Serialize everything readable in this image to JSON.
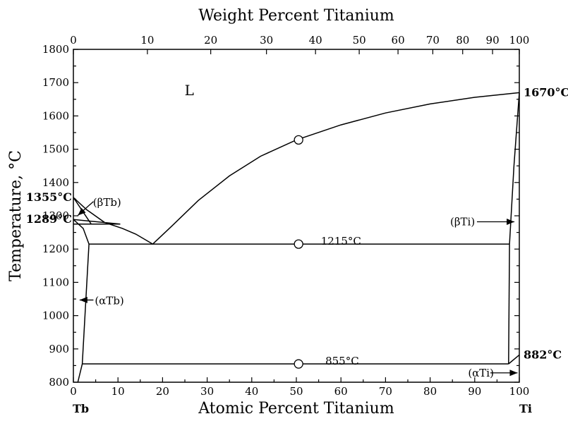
{
  "chart_data": {
    "type": "phase-diagram",
    "title": "Weight Percent Titanium",
    "xlabel": "Atomic Percent Titanium",
    "ylabel": "Temperature, °C",
    "xlim": [
      0,
      100
    ],
    "ylim": [
      800,
      1800
    ],
    "x_ticks": [
      0,
      10,
      20,
      30,
      40,
      50,
      60,
      70,
      80,
      90,
      100
    ],
    "y_ticks": [
      800,
      900,
      1000,
      1100,
      1200,
      1300,
      1400,
      1500,
      1600,
      1700,
      1800
    ],
    "top_ticks": [
      {
        "label": "0",
        "at": 0
      },
      {
        "label": "10",
        "at": 16.6
      },
      {
        "label": "20",
        "at": 30.8
      },
      {
        "label": "30",
        "at": 43.3
      },
      {
        "label": "40",
        "at": 54.3
      },
      {
        "label": "50",
        "at": 64.1
      },
      {
        "label": "60",
        "at": 72.8
      },
      {
        "label": "70",
        "at": 80.6
      },
      {
        "label": "80",
        "at": 87.3
      },
      {
        "label": "90",
        "at": 94.0
      },
      {
        "label": "100",
        "at": 100
      }
    ],
    "end_labels": {
      "left": "Tb",
      "right": "Ti"
    },
    "phase_label": {
      "text": "L",
      "x": 26,
      "y": 1662
    },
    "annotations": [
      {
        "text": "1355°C",
        "x": 0,
        "y": 1355,
        "bold": true,
        "side": "left"
      },
      {
        "text": "1289°C",
        "x": 0,
        "y": 1289,
        "bold": true,
        "side": "left"
      },
      {
        "text": "1670°C",
        "x": 100,
        "y": 1670,
        "bold": true,
        "side": "right"
      },
      {
        "text": "882°C",
        "x": 100,
        "y": 882,
        "bold": true,
        "side": "right"
      },
      {
        "text": "(βTb)",
        "x": 4.4,
        "y": 1340,
        "bold": false
      },
      {
        "text": "(αTb)",
        "x": 4.8,
        "y": 1045,
        "bold": false
      },
      {
        "text": "(βTi)",
        "x": 84.5,
        "y": 1282,
        "bold": false
      },
      {
        "text": "(αTi)",
        "x": 88.5,
        "y": 828,
        "bold": false
      },
      {
        "text": "1215°C",
        "x": 55.5,
        "y": 1224,
        "bold": false
      },
      {
        "text": "855°C",
        "x": 56.5,
        "y": 864,
        "bold": false
      }
    ],
    "curves": [
      {
        "name": "liquidus-left",
        "points": [
          [
            0,
            1355
          ],
          [
            3,
            1318
          ],
          [
            7,
            1280
          ],
          [
            11,
            1262
          ],
          [
            14,
            1245
          ],
          [
            17.8,
            1215
          ]
        ]
      },
      {
        "name": "liquidus-right",
        "points": [
          [
            17.8,
            1215
          ],
          [
            22,
            1268
          ],
          [
            28,
            1346
          ],
          [
            35,
            1420
          ],
          [
            42,
            1479
          ],
          [
            50,
            1528
          ],
          [
            60,
            1573
          ],
          [
            70,
            1609
          ],
          [
            80,
            1636
          ],
          [
            90,
            1656
          ],
          [
            100,
            1670
          ]
        ]
      },
      {
        "name": "betaTb-solidus",
        "points": [
          [
            0,
            1355
          ],
          [
            4,
            1275
          ]
        ]
      },
      {
        "name": "betaTb-solvus",
        "points": [
          [
            0,
            1289
          ],
          [
            2.2,
            1262
          ],
          [
            3.5,
            1215
          ]
        ]
      },
      {
        "name": "alphaTb-solvus",
        "points": [
          [
            3.5,
            1215
          ],
          [
            2,
            855
          ],
          [
            1,
            800
          ]
        ]
      },
      {
        "name": "peritectic-1275",
        "points": [
          [
            0,
            1275
          ],
          [
            10.5,
            1275
          ]
        ]
      },
      {
        "name": "betaTb-liquid-edge",
        "points": [
          [
            0,
            1289
          ],
          [
            10.5,
            1275
          ]
        ]
      },
      {
        "name": "eutectic-1215",
        "points": [
          [
            3.5,
            1215
          ],
          [
            97.8,
            1215
          ]
        ]
      },
      {
        "name": "betaTi-solvus",
        "points": [
          [
            97.8,
            1215
          ],
          [
            97.6,
            855
          ]
        ]
      },
      {
        "name": "betaTi-solidus",
        "points": [
          [
            97.8,
            1215
          ],
          [
            98.8,
            1450
          ],
          [
            100,
            1670
          ]
        ]
      },
      {
        "name": "eutectoid-855",
        "points": [
          [
            2,
            855
          ],
          [
            97.6,
            855
          ]
        ]
      },
      {
        "name": "alphaTi-boundary",
        "points": [
          [
            97.6,
            855
          ],
          [
            100,
            882
          ]
        ]
      }
    ],
    "markers": [
      {
        "x": 50.5,
        "y": 1528
      },
      {
        "x": 50.5,
        "y": 1215
      },
      {
        "x": 50.5,
        "y": 855
      }
    ],
    "arrows": [
      {
        "from": [
          4.5,
          1343
        ],
        "to": [
          1.0,
          1301
        ]
      },
      {
        "from": [
          4.5,
          1047
        ],
        "to": [
          1.4,
          1047
        ]
      },
      {
        "from": [
          90.5,
          1282
        ],
        "to": [
          98.9,
          1282
        ]
      },
      {
        "from": [
          93.5,
          828
        ],
        "to": [
          99.6,
          828
        ]
      }
    ]
  }
}
